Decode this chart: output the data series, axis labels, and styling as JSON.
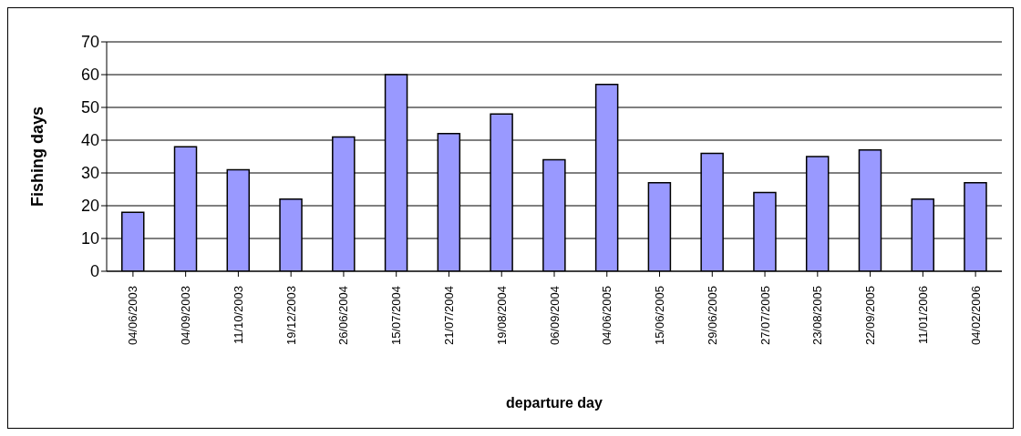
{
  "chart_data": {
    "type": "bar",
    "xlabel": "departure day",
    "ylabel": "Fishing days",
    "categories": [
      "04/06/2003",
      "04/09/2003",
      "11/10/2003",
      "19/12/2003",
      "26/06/2004",
      "15/07/2004",
      "21/07/2004",
      "19/08/2004",
      "06/09/2004",
      "04/06/2005",
      "15/06/2005",
      "29/06/2005",
      "27/07/2005",
      "23/08/2005",
      "22/09/2005",
      "11/01/2006",
      "04/02/2006"
    ],
    "values": [
      18,
      38,
      31,
      22,
      41,
      60,
      42,
      48,
      34,
      57,
      27,
      36,
      24,
      35,
      37,
      22,
      27
    ],
    "color": "#9999ff",
    "ylim": [
      0,
      70
    ],
    "yticks": [
      0,
      10,
      20,
      30,
      40,
      50,
      60,
      70
    ],
    "grid": "y"
  }
}
